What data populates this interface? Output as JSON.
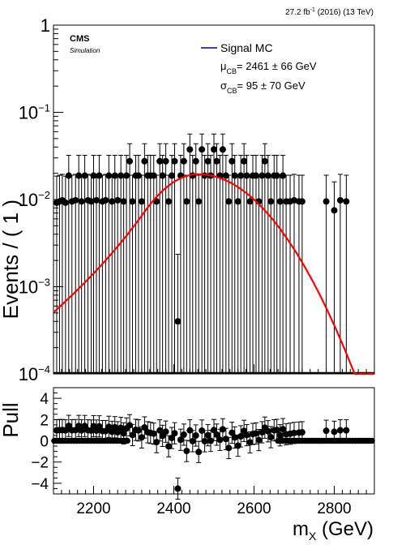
{
  "header": {
    "lumi_prefix": "27.2 fb",
    "lumi_exp": "-1",
    "lumi_suffix": " (2016) (13 TeV)"
  },
  "labels": {
    "cms": "CMS",
    "simulation": "Simulation",
    "legend_entry": "Signal MC",
    "mu_prefix": "μ",
    "mu_sub": "CB",
    "mu_value": "= 2461 ± 66 GeV",
    "sigma_prefix": "σ",
    "sigma_sub": "CB",
    "sigma_value": "= 95 ± 70 GeV",
    "xlabel_main": "m",
    "xlabel_sub": "X",
    "xlabel_unit": " (GeV)"
  },
  "colors": {
    "fit_line": "#ff0000",
    "legend_line": "#000099",
    "points": "#000000"
  },
  "chart_data": [
    {
      "type": "scatter",
      "panel": "main",
      "ylabel": "Events / ( 1 )",
      "yscale": "log",
      "ylim": [
        0.0001,
        1
      ],
      "xlim": [
        2100,
        2900
      ],
      "y_ticks": [
        {
          "value": 0.0001,
          "base": "10",
          "exp": "−4"
        },
        {
          "value": 0.001,
          "base": "10",
          "exp": "−3"
        },
        {
          "value": 0.01,
          "base": "10",
          "exp": "−2"
        },
        {
          "value": 0.1,
          "base": "10",
          "exp": "−1"
        },
        {
          "value": 1,
          "base": "1",
          "exp": ""
        }
      ],
      "fit": {
        "name": "Signal MC",
        "model": "crystal-ball",
        "mean": 2461,
        "sigma": 95,
        "peak": 0.0195,
        "left_tail_x": 2100,
        "left_tail_y": 0.00088
      },
      "points": {
        "x": [
          2108,
          2115,
          2122,
          2130,
          2138,
          2146,
          2155,
          2163,
          2170,
          2178,
          2186,
          2194,
          2200,
          2207,
          2214,
          2222,
          2230,
          2238,
          2246,
          2253,
          2260,
          2268,
          2275,
          2282,
          2290,
          2297,
          2305,
          2312,
          2320,
          2327,
          2335,
          2342,
          2350,
          2357,
          2365,
          2372,
          2380,
          2387,
          2395,
          2402,
          2410,
          2417,
          2425,
          2432,
          2440,
          2447,
          2455,
          2462,
          2470,
          2477,
          2485,
          2492,
          2500,
          2507,
          2515,
          2522,
          2530,
          2537,
          2545,
          2552,
          2560,
          2567,
          2575,
          2582,
          2590,
          2597,
          2605,
          2612,
          2620,
          2627,
          2635,
          2642,
          2650,
          2657,
          2665,
          2672,
          2680,
          2690,
          2700,
          2712,
          2720,
          2780,
          2800,
          2815,
          2830
        ],
        "y": [
          0.0092,
          0.0095,
          0.0098,
          0.0092,
          0.0188,
          0.0095,
          0.0098,
          0.0188,
          0.0095,
          0.0188,
          0.0098,
          0.0095,
          0.0188,
          0.0098,
          0.0188,
          0.0095,
          0.0098,
          0.0188,
          0.0095,
          0.0188,
          0.0098,
          0.0188,
          0.0095,
          0.0188,
          0.0275,
          0.0095,
          0.0188,
          0.0188,
          0.0095,
          0.0275,
          0.0188,
          0.0188,
          0.0188,
          0.0095,
          0.0275,
          0.0188,
          0.0275,
          0.0095,
          0.0188,
          0.0275,
          0.0004,
          0.0188,
          0.0275,
          0.0095,
          0.0375,
          0.0188,
          0.0275,
          0.0095,
          0.0375,
          0.0188,
          0.0275,
          0.0188,
          0.0375,
          0.0275,
          0.0188,
          0.0375,
          0.0188,
          0.0095,
          0.0275,
          0.0188,
          0.0095,
          0.0188,
          0.0275,
          0.0188,
          0.0095,
          0.0188,
          0.0188,
          0.0095,
          0.0188,
          0.0275,
          0.0188,
          0.0095,
          0.0188,
          0.0188,
          0.0095,
          0.0188,
          0.0095,
          0.0095,
          0.0098,
          0.0095,
          0.0095,
          0.0095,
          0.0075,
          0.0098,
          0.0095
        ]
      }
    },
    {
      "type": "scatter",
      "panel": "pull",
      "ylabel": "Pull",
      "ylim": [
        -5,
        5
      ],
      "xlim": [
        2100,
        2900
      ],
      "y_ticks": [
        -4,
        -2,
        0,
        2,
        4
      ],
      "x_ticks": [
        2200,
        2400,
        2600,
        2800
      ],
      "xlabel": "m_X (GeV)"
    }
  ]
}
